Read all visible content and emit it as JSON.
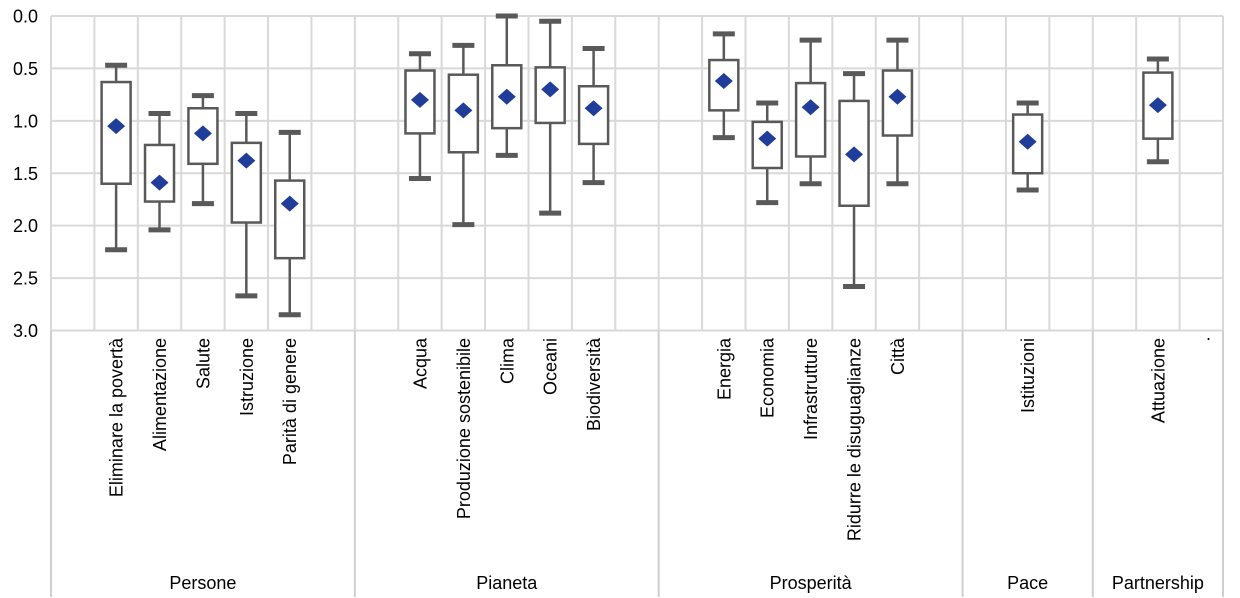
{
  "chart_data": {
    "type": "boxplot",
    "orientation": "vertical",
    "title": "",
    "legend": "none",
    "grid": true,
    "y_axis": {
      "min": 0,
      "max": 3,
      "inverted": true,
      "tick_labels": [
        "0.0",
        "0.5",
        "1.0",
        "1.5",
        "2.0",
        "2.5",
        "3.0"
      ]
    },
    "groups": [
      {
        "label": "Persone",
        "categories": [
          {
            "label": "Eliminare la povertà",
            "whisker_min": 0.47,
            "q1": 0.63,
            "marker": 1.05,
            "q3": 1.6,
            "whisker_max": 2.23
          },
          {
            "label": "Alimentazione",
            "whisker_min": 0.93,
            "q1": 1.23,
            "marker": 1.59,
            "q3": 1.77,
            "whisker_max": 2.04
          },
          {
            "label": "Salute",
            "whisker_min": 0.76,
            "q1": 0.88,
            "marker": 1.12,
            "q3": 1.41,
            "whisker_max": 1.79
          },
          {
            "label": "Istruzione",
            "whisker_min": 0.93,
            "q1": 1.21,
            "marker": 1.38,
            "q3": 1.97,
            "whisker_max": 2.67
          },
          {
            "label": "Parità di genere",
            "whisker_min": 1.11,
            "q1": 1.57,
            "marker": 1.79,
            "q3": 2.31,
            "whisker_max": 2.85
          }
        ]
      },
      {
        "label": "Pianeta",
        "categories": [
          {
            "label": "Acqua",
            "whisker_min": 0.36,
            "q1": 0.52,
            "marker": 0.8,
            "q3": 1.12,
            "whisker_max": 1.55
          },
          {
            "label": "Produzione sostenibile",
            "whisker_min": 0.28,
            "q1": 0.56,
            "marker": 0.9,
            "q3": 1.3,
            "whisker_max": 1.99
          },
          {
            "label": "Clima",
            "whisker_min": 0.0,
            "q1": 0.47,
            "marker": 0.77,
            "q3": 1.07,
            "whisker_max": 1.33
          },
          {
            "label": "Oceani",
            "whisker_min": 0.05,
            "q1": 0.49,
            "marker": 0.7,
            "q3": 1.02,
            "whisker_max": 1.88
          },
          {
            "label": "Biodiversità",
            "whisker_min": 0.31,
            "q1": 0.67,
            "marker": 0.88,
            "q3": 1.22,
            "whisker_max": 1.59
          }
        ]
      },
      {
        "label": "Prosperità",
        "categories": [
          {
            "label": "Energia",
            "whisker_min": 0.17,
            "q1": 0.42,
            "marker": 0.62,
            "q3": 0.9,
            "whisker_max": 1.16
          },
          {
            "label": "Economia",
            "whisker_min": 0.83,
            "q1": 1.01,
            "marker": 1.17,
            "q3": 1.45,
            "whisker_max": 1.78
          },
          {
            "label": "Infrastrutture",
            "whisker_min": 0.23,
            "q1": 0.64,
            "marker": 0.87,
            "q3": 1.34,
            "whisker_max": 1.6
          },
          {
            "label": "Ridurre le disuguaglianze",
            "whisker_min": 0.55,
            "q1": 0.81,
            "marker": 1.32,
            "q3": 1.81,
            "whisker_max": 2.58
          },
          {
            "label": "Città",
            "whisker_min": 0.23,
            "q1": 0.52,
            "marker": 0.77,
            "q3": 1.14,
            "whisker_max": 1.6
          }
        ]
      },
      {
        "label": "Pace",
        "categories": [
          {
            "label": "Istituzioni",
            "whisker_min": 0.83,
            "q1": 0.94,
            "marker": 1.2,
            "q3": 1.5,
            "whisker_max": 1.66
          }
        ]
      },
      {
        "label": "Partnership",
        "categories": [
          {
            "label": "Attuazione",
            "whisker_min": 0.41,
            "q1": 0.54,
            "marker": 0.85,
            "q3": 1.17,
            "whisker_max": 1.39
          }
        ]
      }
    ],
    "stray_label": ".",
    "colors": {
      "marker": "#1F3D99",
      "box_stroke": "#595959",
      "box_fill": "#FFFFFF",
      "gridline": "#D9D9D9",
      "divider": "#CFCFCF",
      "text": "#000000",
      "background": "#FFFFFF"
    }
  }
}
